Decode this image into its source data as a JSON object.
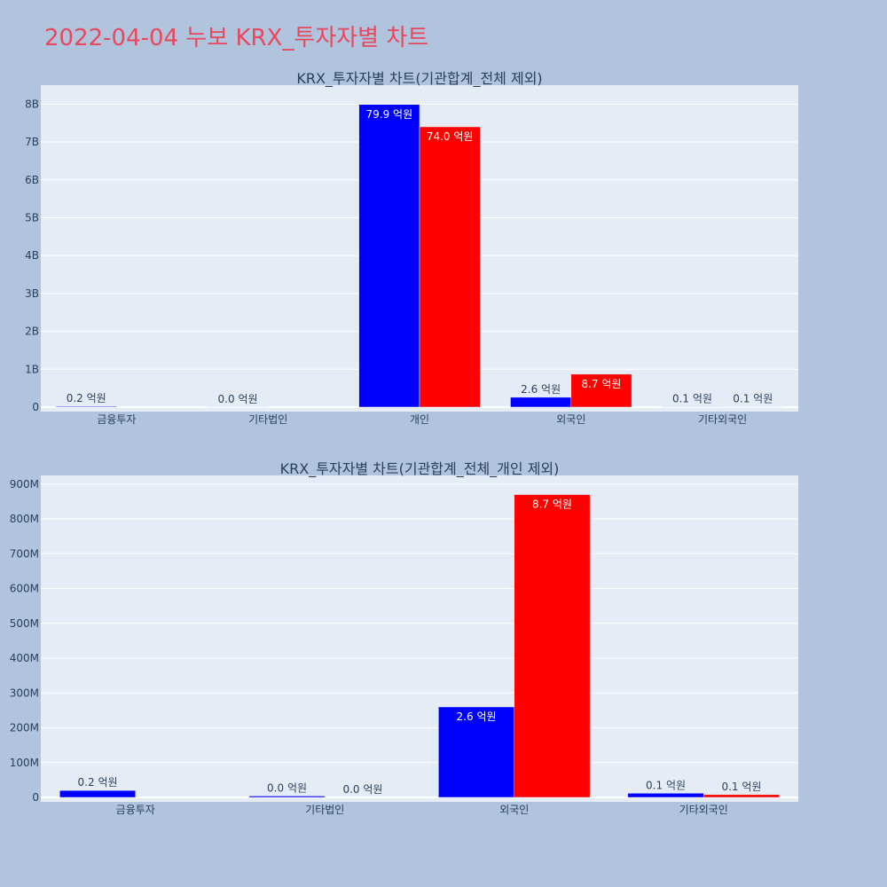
{
  "page": {
    "title": "2022-04-04 누보 KRX_투자자별 차트"
  },
  "colors": {
    "page_bg": "#b0c4de",
    "plot_bg": "#e5ecf6",
    "buy": "#0000ff",
    "sell": "#ff0000",
    "title": "#e8485c",
    "text": "#2a3f5f"
  },
  "chart_data": [
    {
      "type": "bar",
      "title": "KRX_투자자별 차트(기관합계_전체 제외)",
      "categories": [
        "금융투자",
        "기타법인",
        "개인",
        "외국인",
        "기타외국인"
      ],
      "series": [
        {
          "color": "#0000ff",
          "values": [
            20000000,
            4000000,
            7990000000,
            260000000,
            12000000
          ],
          "labels": [
            "0.2 억원",
            "0.0 억원",
            "79.9 억원",
            "2.6 억원",
            "0.1 억원"
          ]
        },
        {
          "color": "#ff0000",
          "values": [
            0,
            0,
            7400000000,
            870000000,
            8000000
          ],
          "labels": [
            "",
            "",
            "74.0 억원",
            "8.7 억원",
            "0.1 억원"
          ]
        }
      ],
      "ylim": [
        0,
        8500000000
      ],
      "yticks": [
        0,
        1000000000,
        2000000000,
        3000000000,
        4000000000,
        5000000000,
        6000000000,
        7000000000,
        8000000000
      ],
      "ytick_labels": [
        "0",
        "1B",
        "2B",
        "3B",
        "4B",
        "5B",
        "6B",
        "7B",
        "8B"
      ],
      "grid": true
    },
    {
      "type": "bar",
      "title": "KRX_투자자별 차트(기관합계_전체_개인 제외)",
      "categories": [
        "금융투자",
        "기타법인",
        "외국인",
        "기타외국인"
      ],
      "series": [
        {
          "color": "#0000ff",
          "values": [
            20000000,
            4000000,
            260000000,
            12000000
          ],
          "labels": [
            "0.2 억원",
            "0.0 억원",
            "2.6 억원",
            "0.1 억원"
          ]
        },
        {
          "color": "#ff0000",
          "values": [
            0,
            0,
            870000000,
            8000000
          ],
          "labels": [
            "",
            "0.0 억원",
            "8.7 억원",
            "0.1 억원"
          ]
        }
      ],
      "ylim": [
        0,
        925000000
      ],
      "yticks": [
        0,
        100000000,
        200000000,
        300000000,
        400000000,
        500000000,
        600000000,
        700000000,
        800000000,
        900000000
      ],
      "ytick_labels": [
        "0",
        "100M",
        "200M",
        "300M",
        "400M",
        "500M",
        "600M",
        "700M",
        "800M",
        "900M"
      ],
      "grid": true
    }
  ]
}
